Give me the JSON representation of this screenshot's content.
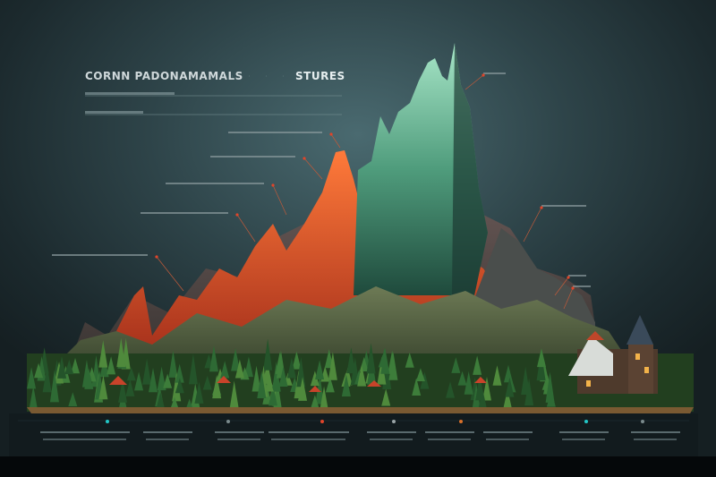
{
  "header": {
    "title": "CORNN PADONAMAMALS",
    "subtitle": "STURES"
  },
  "colors": {
    "background": "#2e4449",
    "orange_peaks": "#e2562f",
    "green_peaks": "#5fb08f",
    "forest": "#2f5a2a",
    "accent_cyan": "#22c7c7",
    "accent_red": "#e0452a"
  }
}
